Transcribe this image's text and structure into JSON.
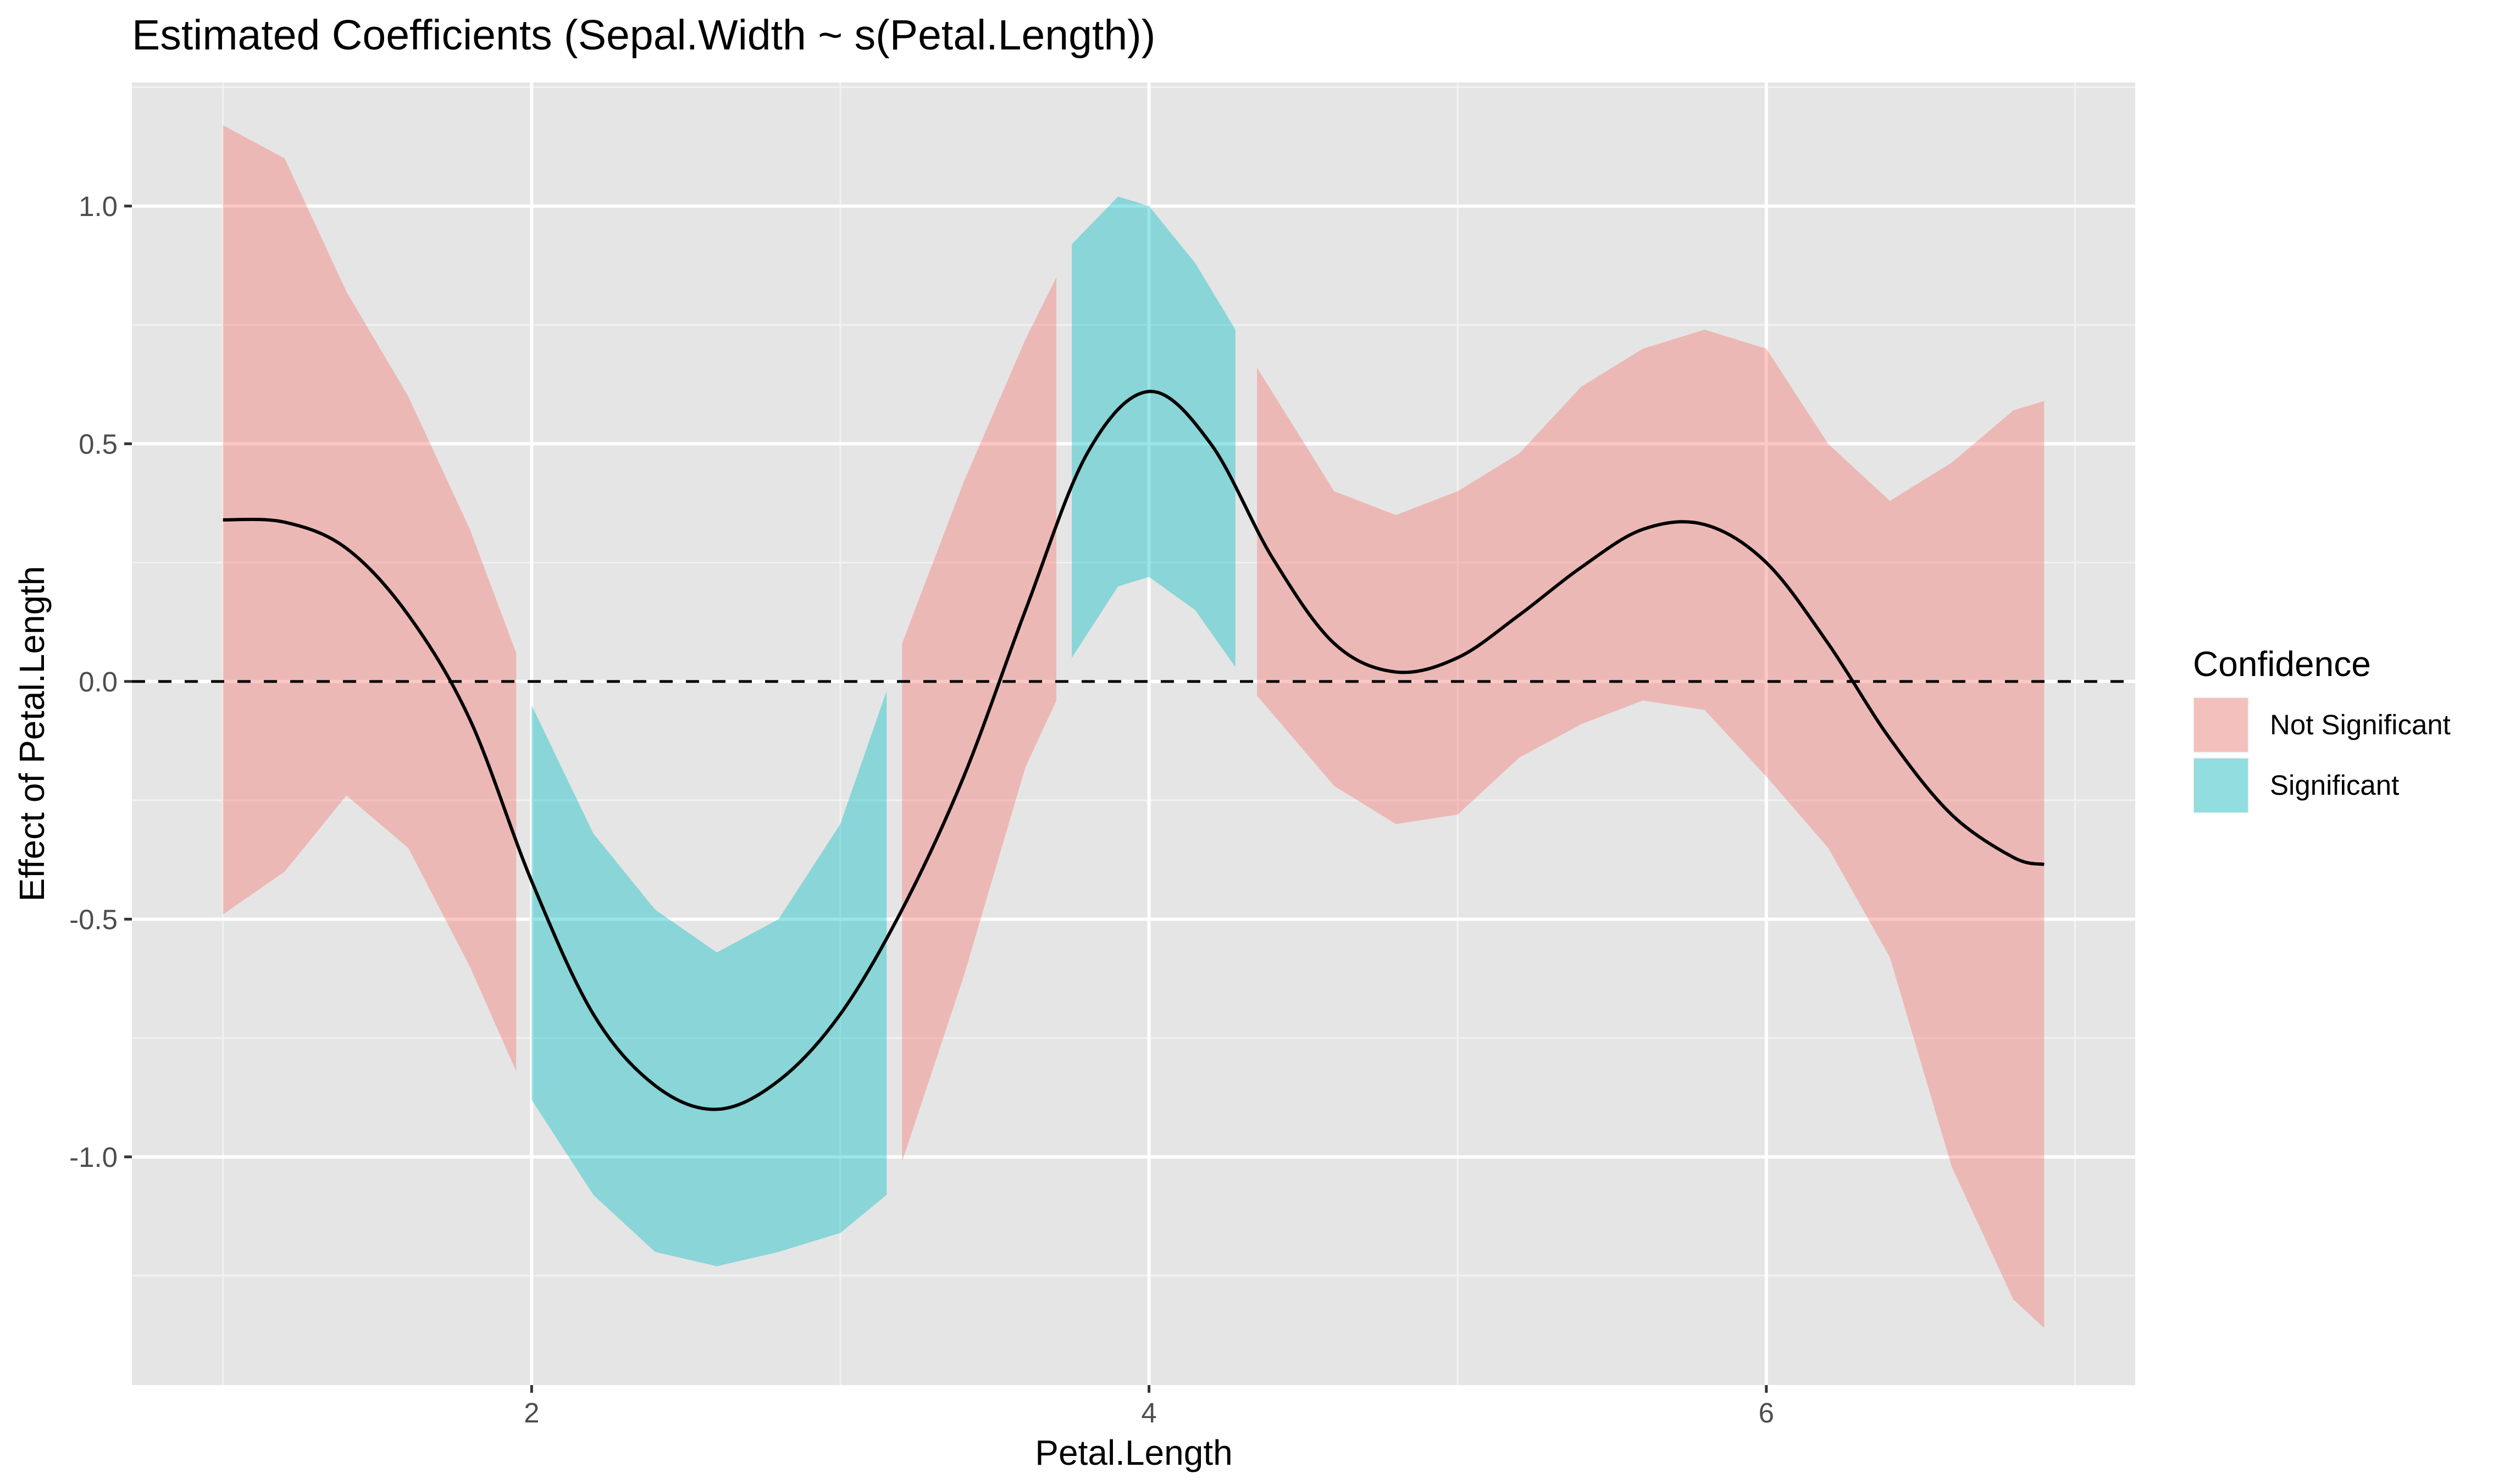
{
  "chart_data": {
    "type": "line",
    "title": "Estimated Coefficients (Sepal.Width ~ s(Petal.Length))",
    "xlabel": "Petal.Length",
    "ylabel": "Effect of Petal.Length",
    "xlim": [
      0.705,
      7.195
    ],
    "ylim": [
      -1.48,
      1.26
    ],
    "x_ticks": [
      2,
      4,
      6
    ],
    "x_tick_labels": [
      "2",
      "4",
      "6"
    ],
    "y_ticks": [
      -1.0,
      -0.5,
      0.0,
      0.5,
      1.0
    ],
    "y_tick_labels": [
      "-1.0",
      "-0.5",
      "0.0",
      "0.5",
      "1.0"
    ],
    "reference_line": {
      "y": 0,
      "style": "dashed"
    },
    "grid": true,
    "legend": {
      "title": "Confidence",
      "position": "right",
      "entries": [
        {
          "label": "Not Significant",
          "color": "#F8766D"
        },
        {
          "label": "Significant",
          "color": "#00BFC4"
        }
      ]
    },
    "series": [
      {
        "name": "",
        "type": "line",
        "color": "#000000",
        "x": [
          1.0,
          1.2,
          1.4,
          1.6,
          1.8,
          2.0,
          2.2,
          2.4,
          2.6,
          2.8,
          3.0,
          3.2,
          3.4,
          3.6,
          3.8,
          4.0,
          4.2,
          4.4,
          4.6,
          4.8,
          5.0,
          5.2,
          5.4,
          5.6,
          5.8,
          6.0,
          6.2,
          6.4,
          6.6,
          6.8,
          6.9
        ],
        "y": [
          0.34,
          0.335,
          0.28,
          0.14,
          -0.08,
          -0.42,
          -0.7,
          -0.85,
          -0.9,
          -0.84,
          -0.7,
          -0.48,
          -0.2,
          0.15,
          0.48,
          0.61,
          0.5,
          0.26,
          0.08,
          0.02,
          0.05,
          0.14,
          0.24,
          0.32,
          0.33,
          0.25,
          0.08,
          -0.12,
          -0.28,
          -0.37,
          -0.385
        ]
      }
    ],
    "confidence_bands": [
      {
        "group": "Not Significant",
        "x": [
          1.0,
          1.2,
          1.4,
          1.6,
          1.8,
          1.95
        ],
        "upper": [
          1.17,
          1.1,
          0.82,
          0.6,
          0.32,
          0.06
        ],
        "lower": [
          -0.49,
          -0.4,
          -0.24,
          -0.35,
          -0.6,
          -0.82
        ]
      },
      {
        "group": "Significant",
        "x": [
          2.0,
          2.2,
          2.4,
          2.6,
          2.8,
          3.0,
          3.15
        ],
        "upper": [
          -0.05,
          -0.32,
          -0.48,
          -0.57,
          -0.5,
          -0.3,
          -0.02
        ],
        "lower": [
          -0.88,
          -1.08,
          -1.2,
          -1.23,
          -1.2,
          -1.16,
          -1.08
        ]
      },
      {
        "group": "Not Significant",
        "x": [
          3.2,
          3.4,
          3.6,
          3.7
        ],
        "upper": [
          0.08,
          0.42,
          0.72,
          0.85
        ],
        "lower": [
          -1.01,
          -0.62,
          -0.18,
          -0.04
        ]
      },
      {
        "group": "Significant",
        "x": [
          3.75,
          3.9,
          4.0,
          4.15,
          4.28
        ],
        "upper": [
          0.92,
          1.02,
          1.0,
          0.88,
          0.74
        ],
        "lower": [
          0.05,
          0.2,
          0.22,
          0.15,
          0.03
        ]
      },
      {
        "group": "Not Significant",
        "x": [
          4.35,
          4.6,
          4.8,
          5.0,
          5.2,
          5.4,
          5.6,
          5.8,
          6.0,
          6.2,
          6.4,
          6.6,
          6.8,
          6.9
        ],
        "upper": [
          0.66,
          0.4,
          0.35,
          0.4,
          0.48,
          0.62,
          0.7,
          0.74,
          0.7,
          0.5,
          0.38,
          0.46,
          0.57,
          0.59
        ],
        "lower": [
          -0.03,
          -0.22,
          -0.3,
          -0.28,
          -0.16,
          -0.09,
          -0.04,
          -0.06,
          -0.2,
          -0.35,
          -0.58,
          -1.02,
          -1.3,
          -1.36
        ]
      }
    ]
  }
}
